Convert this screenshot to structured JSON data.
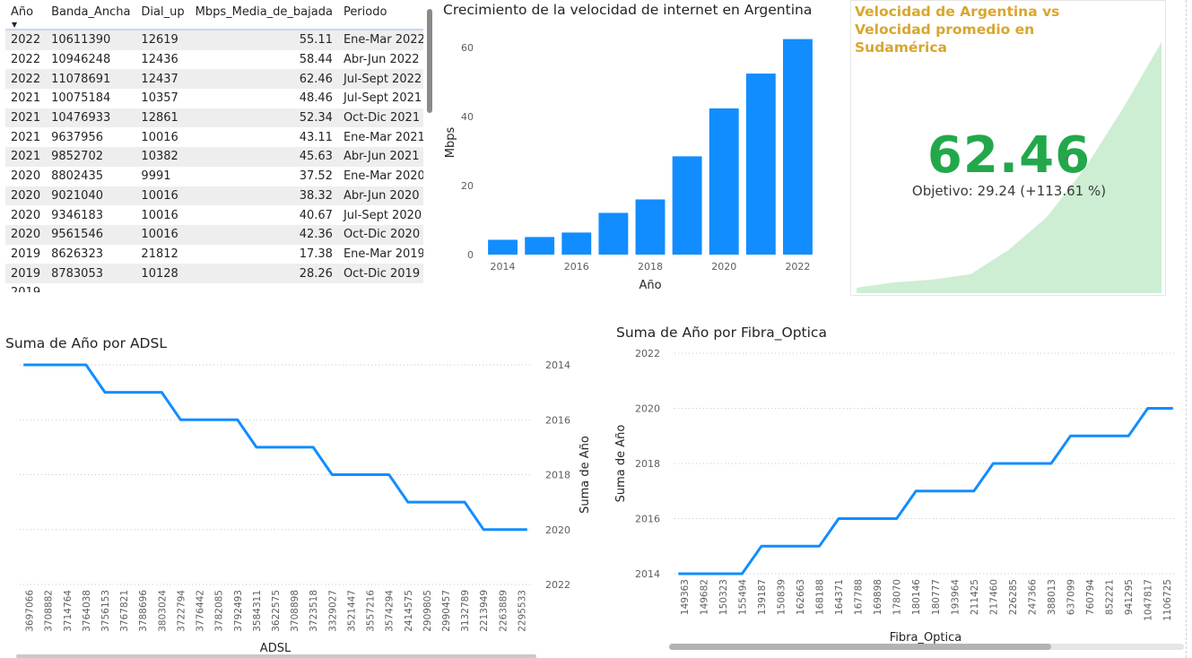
{
  "table": {
    "columns": [
      "Año",
      "Banda_Ancha",
      "Dial_up",
      "Mbps_Media_de_bajada",
      "Periodo"
    ],
    "rows": [
      [
        "2022",
        "10611390",
        "12619",
        "55.11",
        "Ene-Mar 2022"
      ],
      [
        "2022",
        "10946248",
        "12436",
        "58.44",
        "Abr-Jun 2022"
      ],
      [
        "2022",
        "11078691",
        "12437",
        "62.46",
        "Jul-Sept 2022"
      ],
      [
        "2021",
        "10075184",
        "10357",
        "48.46",
        "Jul-Sept 2021"
      ],
      [
        "2021",
        "10476933",
        "12861",
        "52.34",
        "Oct-Dic 2021"
      ],
      [
        "2021",
        "9637956",
        "10016",
        "43.11",
        "Ene-Mar 2021"
      ],
      [
        "2021",
        "9852702",
        "10382",
        "45.63",
        "Abr-Jun 2021"
      ],
      [
        "2020",
        "8802435",
        "9991",
        "37.52",
        "Ene-Mar 2020"
      ],
      [
        "2020",
        "9021040",
        "10016",
        "38.32",
        "Abr-Jun 2020"
      ],
      [
        "2020",
        "9346183",
        "10016",
        "40.67",
        "Jul-Sept 2020"
      ],
      [
        "2020",
        "9561546",
        "10016",
        "42.36",
        "Oct-Dic 2020"
      ],
      [
        "2019",
        "8626323",
        "21812",
        "17.38",
        "Ene-Mar 2019"
      ],
      [
        "2019",
        "8783053",
        "10128",
        "28.26",
        "Oct-Dic 2019"
      ],
      [
        "2019",
        "",
        "",
        "",
        ""
      ]
    ]
  },
  "kpi": {
    "title": "Velocidad de Argentina vs Velocidad promedio en Sudamérica",
    "value": "62.46",
    "goal": "Objetivo: 29.24 (+113.61 %)",
    "accent_color": "#d8a630",
    "value_color": "#22a84a",
    "trend_fill": "#cdeed3",
    "trend": [
      55.0,
      56.0,
      56.5,
      57.5,
      62.0,
      68.0,
      77.0,
      88.0,
      100.0
    ]
  },
  "chart_data": [
    {
      "type": "bar",
      "title": "Crecimiento de la velocidad de internet en Argentina",
      "xlabel": "Año",
      "ylabel": "Mbps",
      "categories": [
        2014,
        2015,
        2016,
        2017,
        2018,
        2019,
        2020,
        2021,
        2022
      ],
      "values": [
        4.3,
        5.1,
        6.4,
        12.1,
        16.0,
        28.5,
        42.4,
        52.5,
        62.5
      ],
      "x_ticks": [
        2014,
        2016,
        2018,
        2020,
        2022
      ],
      "y_ticks": [
        0,
        20,
        40,
        60
      ],
      "ylim": [
        0,
        65
      ],
      "color": "#118dff"
    },
    {
      "type": "line",
      "title": "Suma de Año por ADSL",
      "xlabel": "ADSL",
      "ylabel": "Suma de Año",
      "categories": [
        "3697066",
        "3708882",
        "3714764",
        "3764038",
        "3756153",
        "3767821",
        "3788696",
        "3803024",
        "3722794",
        "3776442",
        "3782085",
        "3792493",
        "3584311",
        "3622575",
        "3708898",
        "3723518",
        "3329027",
        "3521447",
        "3557216",
        "3574294",
        "2414575",
        "2909805",
        "2990457",
        "3132789",
        "2213949",
        "2263889",
        "2295533"
      ],
      "values": [
        2014,
        2014,
        2014,
        2014,
        2015,
        2015,
        2015,
        2015,
        2016,
        2016,
        2016,
        2016,
        2017,
        2017,
        2017,
        2017,
        2018,
        2018,
        2018,
        2018,
        2019,
        2019,
        2019,
        2019,
        2020,
        2020,
        2020
      ],
      "y_ticks": [
        2014,
        2016,
        2018,
        2020,
        2022
      ],
      "ylim": [
        2014,
        2022
      ],
      "y_reversed": true,
      "color": "#118dff"
    },
    {
      "type": "line",
      "title": "Suma de Año por Fibra_Optica",
      "xlabel": "Fibra_Optica",
      "ylabel": "Suma de Año",
      "categories": [
        "149363",
        "149682",
        "150323",
        "155494",
        "139187",
        "150839",
        "162663",
        "168188",
        "164371",
        "167788",
        "169898",
        "178070",
        "180146",
        "180777",
        "193964",
        "211425",
        "217460",
        "226285",
        "247366",
        "388013",
        "637099",
        "760794",
        "852221",
        "941295",
        "1047817",
        "1106725"
      ],
      "values": [
        2014,
        2014,
        2014,
        2014,
        2015,
        2015,
        2015,
        2015,
        2016,
        2016,
        2016,
        2016,
        2017,
        2017,
        2017,
        2017,
        2018,
        2018,
        2018,
        2018,
        2019,
        2019,
        2019,
        2019,
        2020,
        2020
      ],
      "y_ticks": [
        2014,
        2016,
        2018,
        2020,
        2022
      ],
      "ylim": [
        2014,
        2022
      ],
      "color": "#118dff"
    }
  ]
}
